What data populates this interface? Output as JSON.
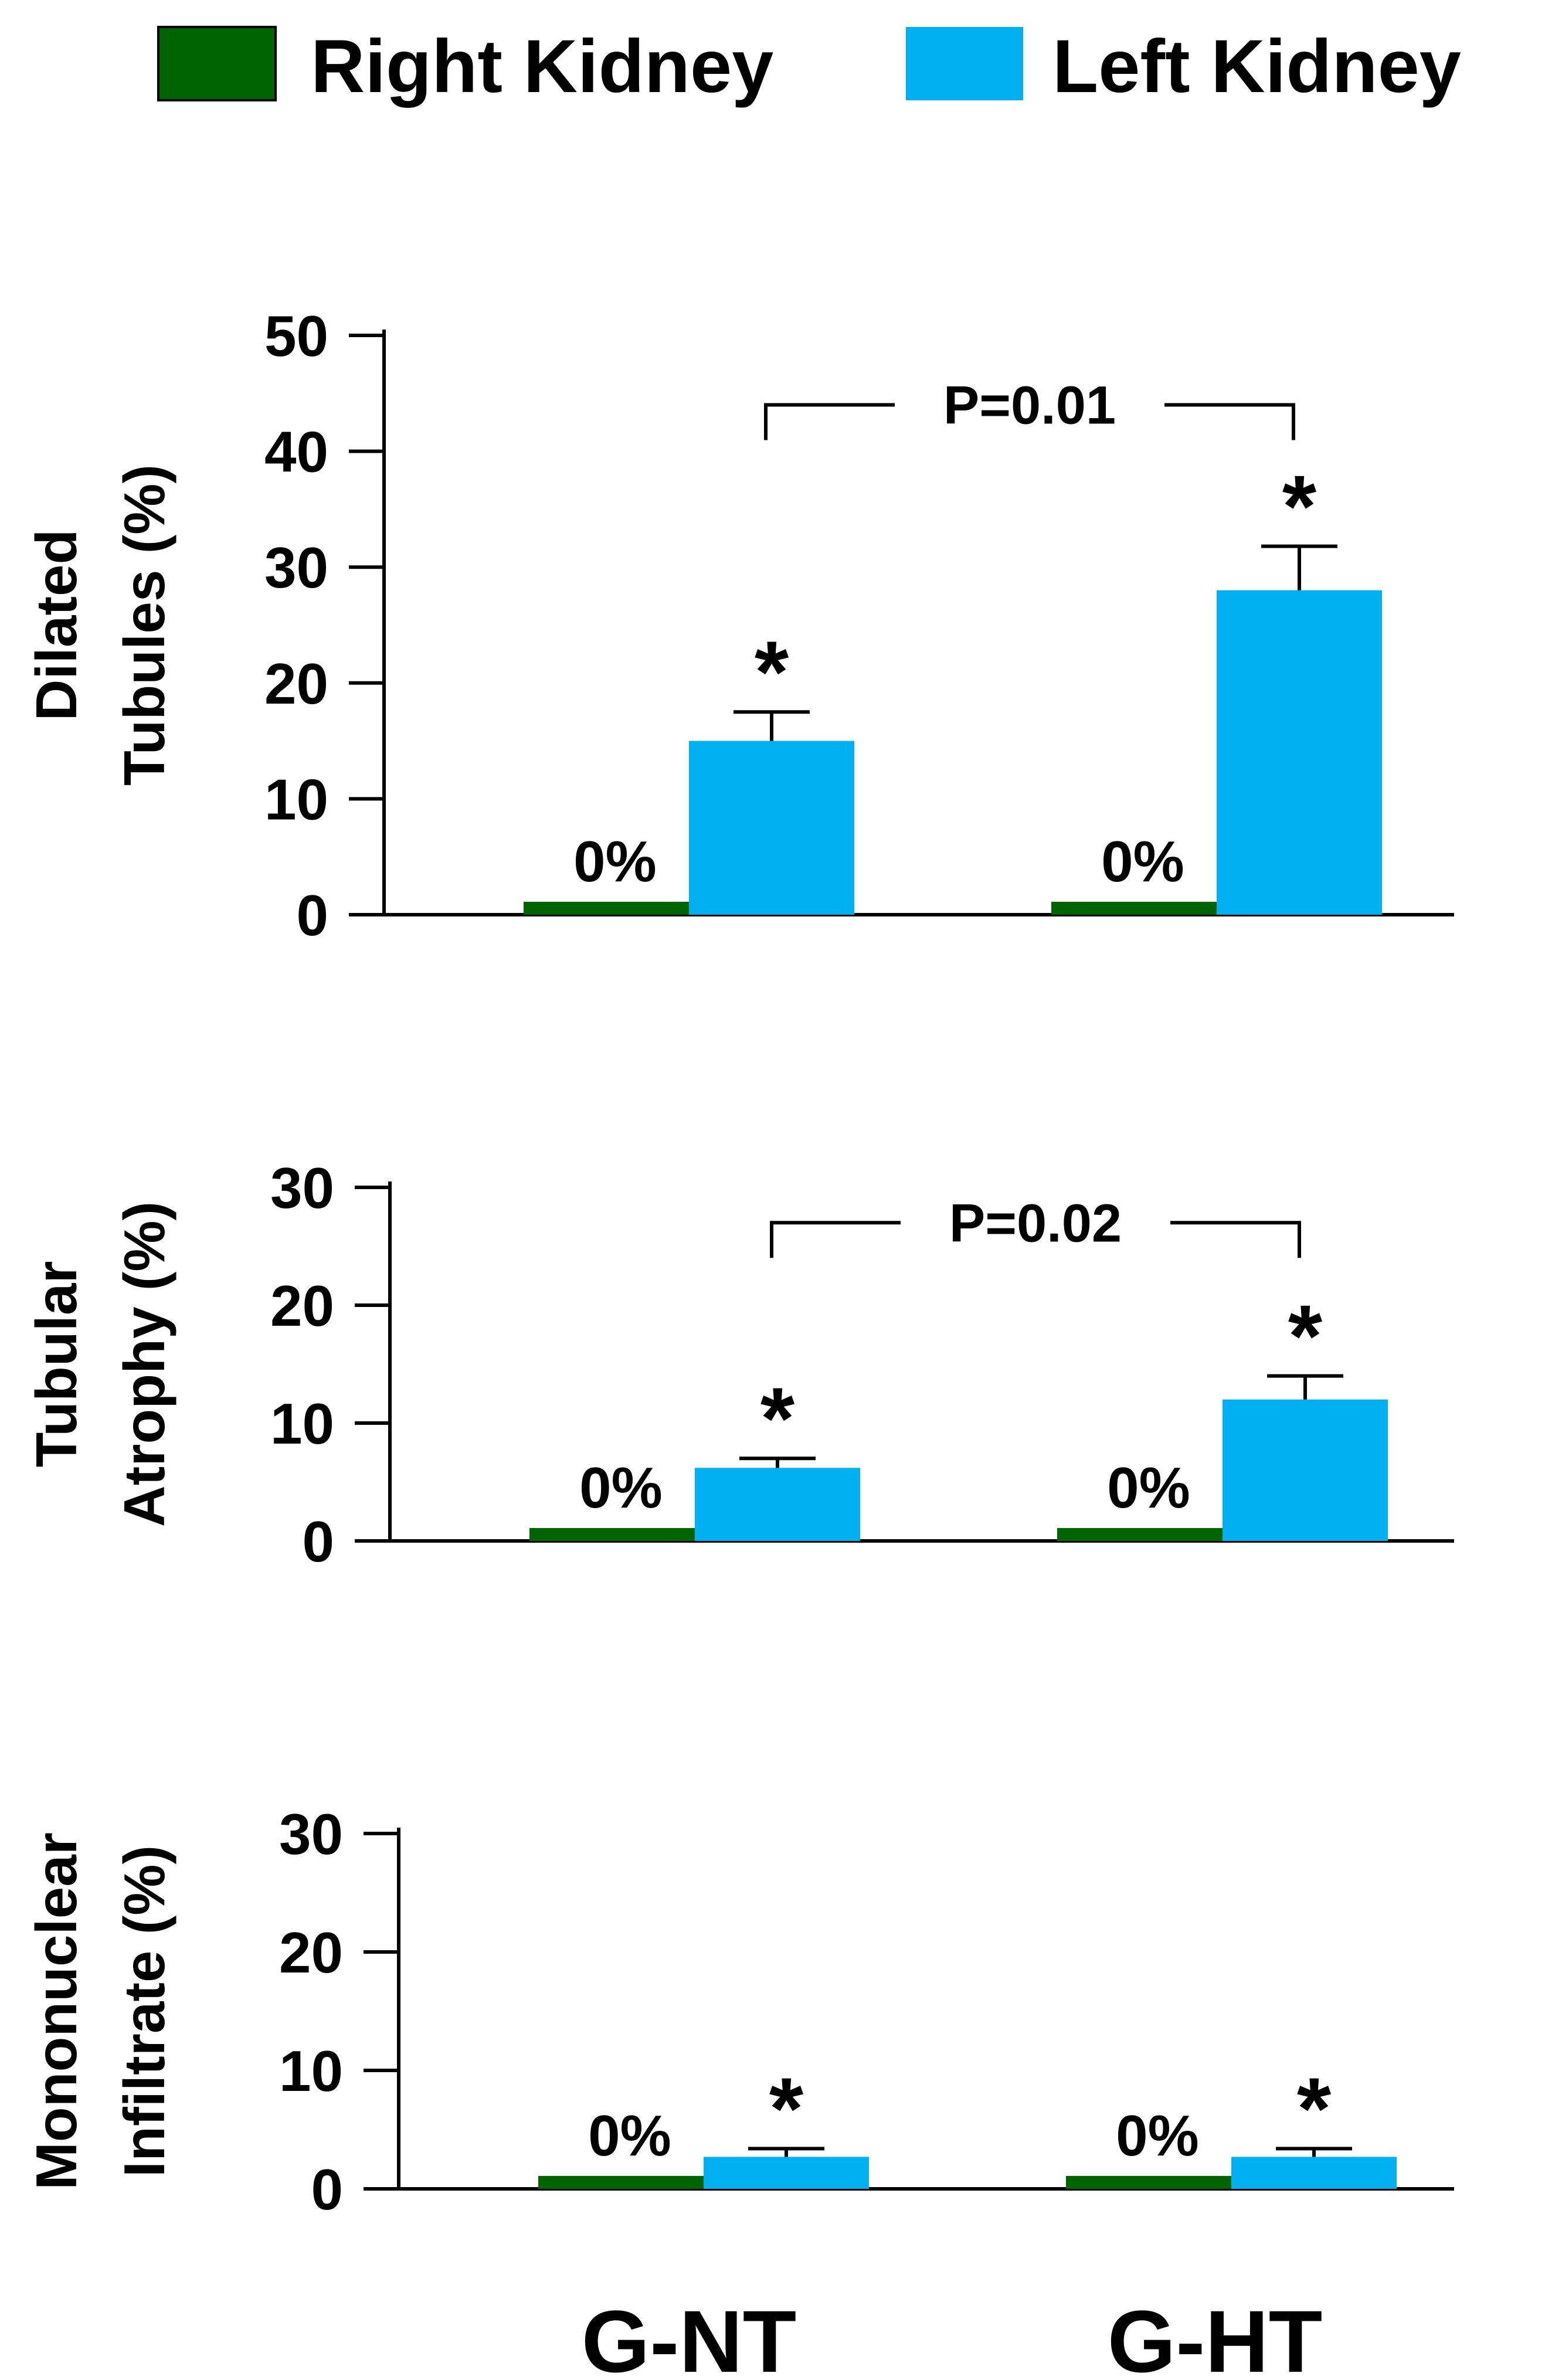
{
  "legend": {
    "right_label": "Right Kidney",
    "left_label": "Left Kidney"
  },
  "colors": {
    "right": "#006400",
    "left": "#00b0f0"
  },
  "categories": [
    "G-NT",
    "G-HT"
  ],
  "chart_data": [
    {
      "type": "bar",
      "ylabel": [
        "Dilated",
        "Tubules (%)"
      ],
      "ylim": [
        0,
        50
      ],
      "yticks": [
        0,
        10,
        20,
        30,
        40,
        50
      ],
      "categories": [
        "G-NT",
        "G-HT"
      ],
      "series": [
        {
          "name": "Right Kidney",
          "values": [
            0,
            0
          ],
          "labels": [
            "0%",
            "0%"
          ]
        },
        {
          "name": "Left Kidney",
          "values": [
            15,
            28
          ],
          "errors": [
            2.5,
            3.8
          ],
          "markers": [
            "*",
            "*"
          ]
        }
      ],
      "comparison": {
        "text": "P=0.01",
        "y": 44
      }
    },
    {
      "type": "bar",
      "ylabel": [
        "Tubular",
        "Atrophy (%)"
      ],
      "ylim": [
        0,
        30
      ],
      "yticks": [
        0,
        10,
        20,
        30
      ],
      "categories": [
        "G-NT",
        "G-HT"
      ],
      "series": [
        {
          "name": "Right Kidney",
          "values": [
            0,
            0
          ],
          "labels": [
            "0%",
            "0%"
          ]
        },
        {
          "name": "Left Kidney",
          "values": [
            6.2,
            12
          ],
          "errors": [
            0.8,
            2
          ],
          "markers": [
            "*",
            "*"
          ]
        }
      ],
      "comparison": {
        "text": "P=0.02",
        "y": 27
      }
    },
    {
      "type": "bar",
      "ylabel": [
        "Mononuclear",
        "Infiltrate (%)"
      ],
      "ylim": [
        0,
        30
      ],
      "yticks": [
        0,
        10,
        20,
        30
      ],
      "categories": [
        "G-NT",
        "G-HT"
      ],
      "series": [
        {
          "name": "Right Kidney",
          "values": [
            0,
            0
          ],
          "labels": [
            "0%",
            "0%"
          ]
        },
        {
          "name": "Left Kidney",
          "values": [
            2.7,
            2.7
          ],
          "errors": [
            0.7,
            0.7
          ],
          "markers": [
            "*",
            "*"
          ]
        }
      ],
      "comparison": null
    }
  ]
}
